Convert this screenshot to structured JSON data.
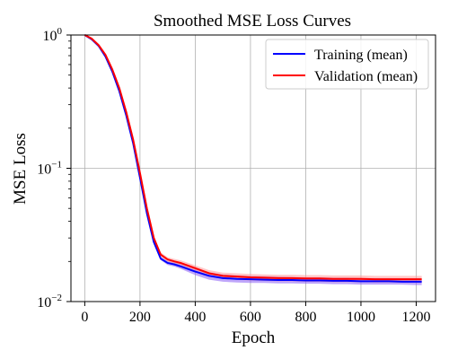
{
  "chart_data": {
    "type": "line",
    "title": "Smoothed MSE Loss Curves",
    "xlabel": "Epoch",
    "ylabel": "MSE Loss",
    "xlim": [
      -50,
      1270
    ],
    "ylim": [
      0.01,
      1
    ],
    "yscale": "log",
    "grid": true,
    "legend_position": "top-right",
    "xticks": [
      0,
      200,
      400,
      600,
      800,
      1000,
      1200
    ],
    "xtick_labels": [
      "0",
      "200",
      "400",
      "600",
      "800",
      "1000",
      "1200"
    ],
    "yticks": [
      0.01,
      0.1,
      1
    ],
    "ytick_labels": [
      {
        "base": "10",
        "exp": "−2"
      },
      {
        "base": "10",
        "exp": "−1"
      },
      {
        "base": "10",
        "exp": "0"
      }
    ],
    "x": [
      0,
      25,
      50,
      75,
      100,
      125,
      150,
      175,
      200,
      225,
      250,
      275,
      300,
      325,
      350,
      400,
      450,
      500,
      550,
      600,
      650,
      700,
      750,
      800,
      850,
      900,
      950,
      1000,
      1050,
      1100,
      1150,
      1200,
      1220
    ],
    "series": [
      {
        "name": "Training (mean)",
        "color": "#0000ff",
        "band_color": "#8a5cf5",
        "values": [
          1.0,
          0.93,
          0.83,
          0.69,
          0.53,
          0.38,
          0.25,
          0.155,
          0.085,
          0.046,
          0.028,
          0.021,
          0.0195,
          0.019,
          0.0183,
          0.0168,
          0.0156,
          0.015,
          0.0148,
          0.0147,
          0.0146,
          0.0145,
          0.0145,
          0.0144,
          0.0144,
          0.0143,
          0.0143,
          0.0142,
          0.0142,
          0.0142,
          0.0141,
          0.0141,
          0.0141
        ],
        "band_low": [
          0.98,
          0.91,
          0.81,
          0.675,
          0.52,
          0.37,
          0.245,
          0.151,
          0.083,
          0.0445,
          0.0272,
          0.0205,
          0.0188,
          0.0183,
          0.0175,
          0.0158,
          0.0146,
          0.0141,
          0.0139,
          0.0138,
          0.0138,
          0.0137,
          0.0137,
          0.0136,
          0.0136,
          0.0135,
          0.0135,
          0.0134,
          0.0134,
          0.0134,
          0.0134,
          0.0133,
          0.0133
        ],
        "band_high": [
          1.02,
          0.95,
          0.85,
          0.705,
          0.545,
          0.39,
          0.256,
          0.159,
          0.087,
          0.0475,
          0.0288,
          0.0216,
          0.0202,
          0.0197,
          0.0191,
          0.0178,
          0.0166,
          0.016,
          0.0157,
          0.0156,
          0.0155,
          0.0154,
          0.0153,
          0.0152,
          0.0152,
          0.0151,
          0.0151,
          0.015,
          0.015,
          0.015,
          0.0149,
          0.0149,
          0.0149
        ]
      },
      {
        "name": "Validation (mean)",
        "color": "#ff0000",
        "band_color": "#ff9999",
        "values": [
          1.0,
          0.94,
          0.84,
          0.71,
          0.55,
          0.4,
          0.265,
          0.165,
          0.092,
          0.05,
          0.03,
          0.0225,
          0.0207,
          0.02,
          0.0194,
          0.0178,
          0.0163,
          0.0156,
          0.0154,
          0.0152,
          0.0151,
          0.015,
          0.015,
          0.0149,
          0.0149,
          0.0148,
          0.0148,
          0.0148,
          0.0147,
          0.0147,
          0.0147,
          0.0147,
          0.0147
        ],
        "band_low": [
          0.98,
          0.92,
          0.82,
          0.695,
          0.535,
          0.39,
          0.258,
          0.161,
          0.089,
          0.0485,
          0.0291,
          0.0217,
          0.0199,
          0.0192,
          0.0186,
          0.017,
          0.0155,
          0.0148,
          0.0146,
          0.0144,
          0.0143,
          0.0142,
          0.0142,
          0.0141,
          0.0141,
          0.014,
          0.014,
          0.014,
          0.0139,
          0.0139,
          0.0139,
          0.0139,
          0.0139
        ],
        "band_high": [
          1.02,
          0.96,
          0.86,
          0.725,
          0.565,
          0.41,
          0.272,
          0.17,
          0.095,
          0.0515,
          0.0309,
          0.0234,
          0.0215,
          0.0209,
          0.0203,
          0.0187,
          0.0172,
          0.0165,
          0.0163,
          0.0161,
          0.016,
          0.0159,
          0.0159,
          0.0158,
          0.0158,
          0.0157,
          0.0157,
          0.0157,
          0.0156,
          0.0156,
          0.0156,
          0.0156,
          0.0156
        ]
      }
    ]
  }
}
